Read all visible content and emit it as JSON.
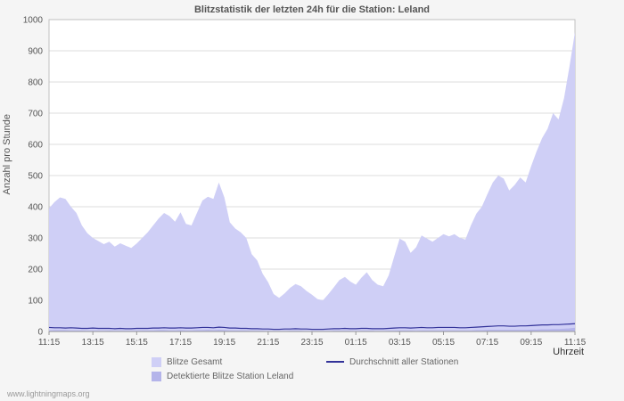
{
  "page": {
    "background": "#f5f5f5"
  },
  "chart_data": {
    "type": "area",
    "title": "Blitzstatistik der letzten 24h für die Station: Leland",
    "ylabel": "Anzahl pro Stunde",
    "xlabel": "Uhrzeit",
    "watermark": "www.lightningmaps.org",
    "ylim": [
      0,
      1000
    ],
    "y_step": 100,
    "grid": true,
    "legend_position": "bottom",
    "x_start": "11:15",
    "x_step_minutes": 15,
    "x_ticks": [
      "11:15",
      "13:15",
      "15:15",
      "17:15",
      "19:15",
      "21:15",
      "23:15",
      "01:15",
      "03:15",
      "05:15",
      "07:15",
      "09:15",
      "11:15"
    ],
    "colors": {
      "plot_background": "#ffffff",
      "grid": "#dcdcdc",
      "border": "#c0c0c0",
      "axis_text": "#555555"
    },
    "series": [
      {
        "name": "Blitze Gesamt",
        "type": "area",
        "color": "#cfcff6",
        "values": [
          395,
          415,
          430,
          425,
          400,
          380,
          340,
          315,
          300,
          290,
          280,
          288,
          272,
          283,
          275,
          268,
          282,
          300,
          318,
          340,
          362,
          380,
          370,
          352,
          382,
          345,
          340,
          380,
          420,
          432,
          425,
          478,
          430,
          350,
          330,
          318,
          300,
          248,
          228,
          185,
          158,
          120,
          108,
          122,
          140,
          152,
          145,
          130,
          118,
          104,
          100,
          120,
          142,
          165,
          175,
          160,
          150,
          172,
          190,
          165,
          150,
          145,
          180,
          240,
          298,
          288,
          252,
          270,
          308,
          298,
          288,
          300,
          312,
          305,
          312,
          300,
          295,
          340,
          378,
          400,
          440,
          478,
          500,
          490,
          452,
          470,
          494,
          478,
          530,
          578,
          620,
          650,
          700,
          680,
          748,
          850,
          960
        ]
      },
      {
        "name": "Detektierte Blitze Station Leland",
        "type": "area",
        "color": "#b4b4ea",
        "values": [
          3,
          4,
          4,
          4,
          3,
          3,
          3,
          2,
          2,
          2,
          2,
          3,
          2,
          2,
          2,
          2,
          2,
          3,
          3,
          3,
          4,
          4,
          3,
          3,
          4,
          3,
          3,
          4,
          4,
          5,
          4,
          5,
          4,
          3,
          3,
          3,
          3,
          2,
          2,
          2,
          1,
          1,
          1,
          1,
          2,
          2,
          2,
          1,
          1,
          1,
          1,
          1,
          2,
          2,
          2,
          2,
          1,
          2,
          2,
          2,
          1,
          1,
          2,
          2,
          3,
          3,
          3,
          2,
          3,
          3,
          3,
          3,
          3,
          3,
          3,
          3,
          3,
          3,
          4,
          4,
          5,
          5,
          5,
          5,
          5,
          5,
          5,
          5,
          6,
          6,
          7,
          7,
          8,
          8,
          9,
          10,
          12
        ]
      },
      {
        "name": "Durchschnitt aller Stationen",
        "type": "line",
        "color": "#333399",
        "values": [
          13,
          12,
          12,
          11,
          12,
          11,
          10,
          10,
          11,
          10,
          10,
          10,
          9,
          10,
          9,
          9,
          10,
          10,
          10,
          11,
          11,
          12,
          11,
          11,
          12,
          11,
          11,
          12,
          13,
          13,
          12,
          14,
          13,
          11,
          11,
          10,
          10,
          9,
          9,
          8,
          8,
          7,
          7,
          8,
          8,
          9,
          8,
          8,
          7,
          7,
          7,
          8,
          9,
          9,
          10,
          9,
          9,
          10,
          10,
          9,
          9,
          9,
          10,
          11,
          12,
          12,
          11,
          12,
          13,
          12,
          12,
          13,
          13,
          13,
          13,
          12,
          12,
          13,
          14,
          15,
          16,
          17,
          18,
          18,
          17,
          17,
          18,
          18,
          19,
          20,
          21,
          21,
          22,
          22,
          23,
          24,
          25
        ]
      }
    ]
  }
}
